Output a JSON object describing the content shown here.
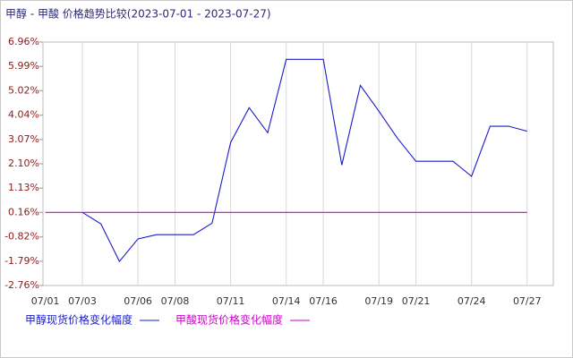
{
  "chart_data": {
    "type": "line",
    "title": "甲醇 - 甲酸 价格趋势比较(2023-07-01 - 2023-07-27)",
    "categories": [
      "07/01",
      null,
      "07/03",
      null,
      null,
      "07/06",
      null,
      "07/08",
      null,
      null,
      "07/11",
      null,
      null,
      "07/14",
      null,
      "07/16",
      null,
      null,
      "07/19",
      null,
      "07/21",
      null,
      null,
      "07/24",
      null,
      null,
      "07/27"
    ],
    "series": [
      {
        "name": "甲醇现货价格变化幅度",
        "color": "#1a1acc",
        "values": [
          null,
          null,
          0.16,
          -0.3,
          -1.8,
          -0.9,
          -0.73,
          -0.73,
          -0.73,
          -0.27,
          2.95,
          4.34,
          3.34,
          6.27,
          6.27,
          6.27,
          2.05,
          5.23,
          4.2,
          3.12,
          2.2,
          2.2,
          2.2,
          1.6,
          3.6,
          3.6,
          3.4
        ]
      },
      {
        "name": "甲酸现货价格变化幅度",
        "color": "#cc00cc",
        "values": [
          0.16,
          0.16,
          0.16,
          0.16,
          0.16,
          0.16,
          0.16,
          0.16,
          0.16,
          0.16,
          0.16,
          0.16,
          0.16,
          0.16,
          0.16,
          0.16,
          0.16,
          0.16,
          0.16,
          0.16,
          0.16,
          0.16,
          0.16,
          0.16,
          0.16,
          0.16,
          0.16
        ]
      }
    ],
    "ylim": [
      -2.76,
      6.96
    ],
    "yticks": [
      {
        "value": 6.96,
        "label": "6.96%"
      },
      {
        "value": 5.99,
        "label": "5.99%"
      },
      {
        "value": 5.02,
        "label": "5.02%"
      },
      {
        "value": 4.04,
        "label": "4.04%"
      },
      {
        "value": 3.07,
        "label": "3.07%"
      },
      {
        "value": 2.1,
        "label": "2.10%"
      },
      {
        "value": 1.13,
        "label": "1.13%"
      },
      {
        "value": 0.16,
        "label": "0.16%"
      },
      {
        "value": -0.82,
        "label": "-0.82%"
      },
      {
        "value": -1.79,
        "label": "-1.79%"
      },
      {
        "value": -2.76,
        "label": "-2.76%"
      }
    ],
    "grid": true
  }
}
